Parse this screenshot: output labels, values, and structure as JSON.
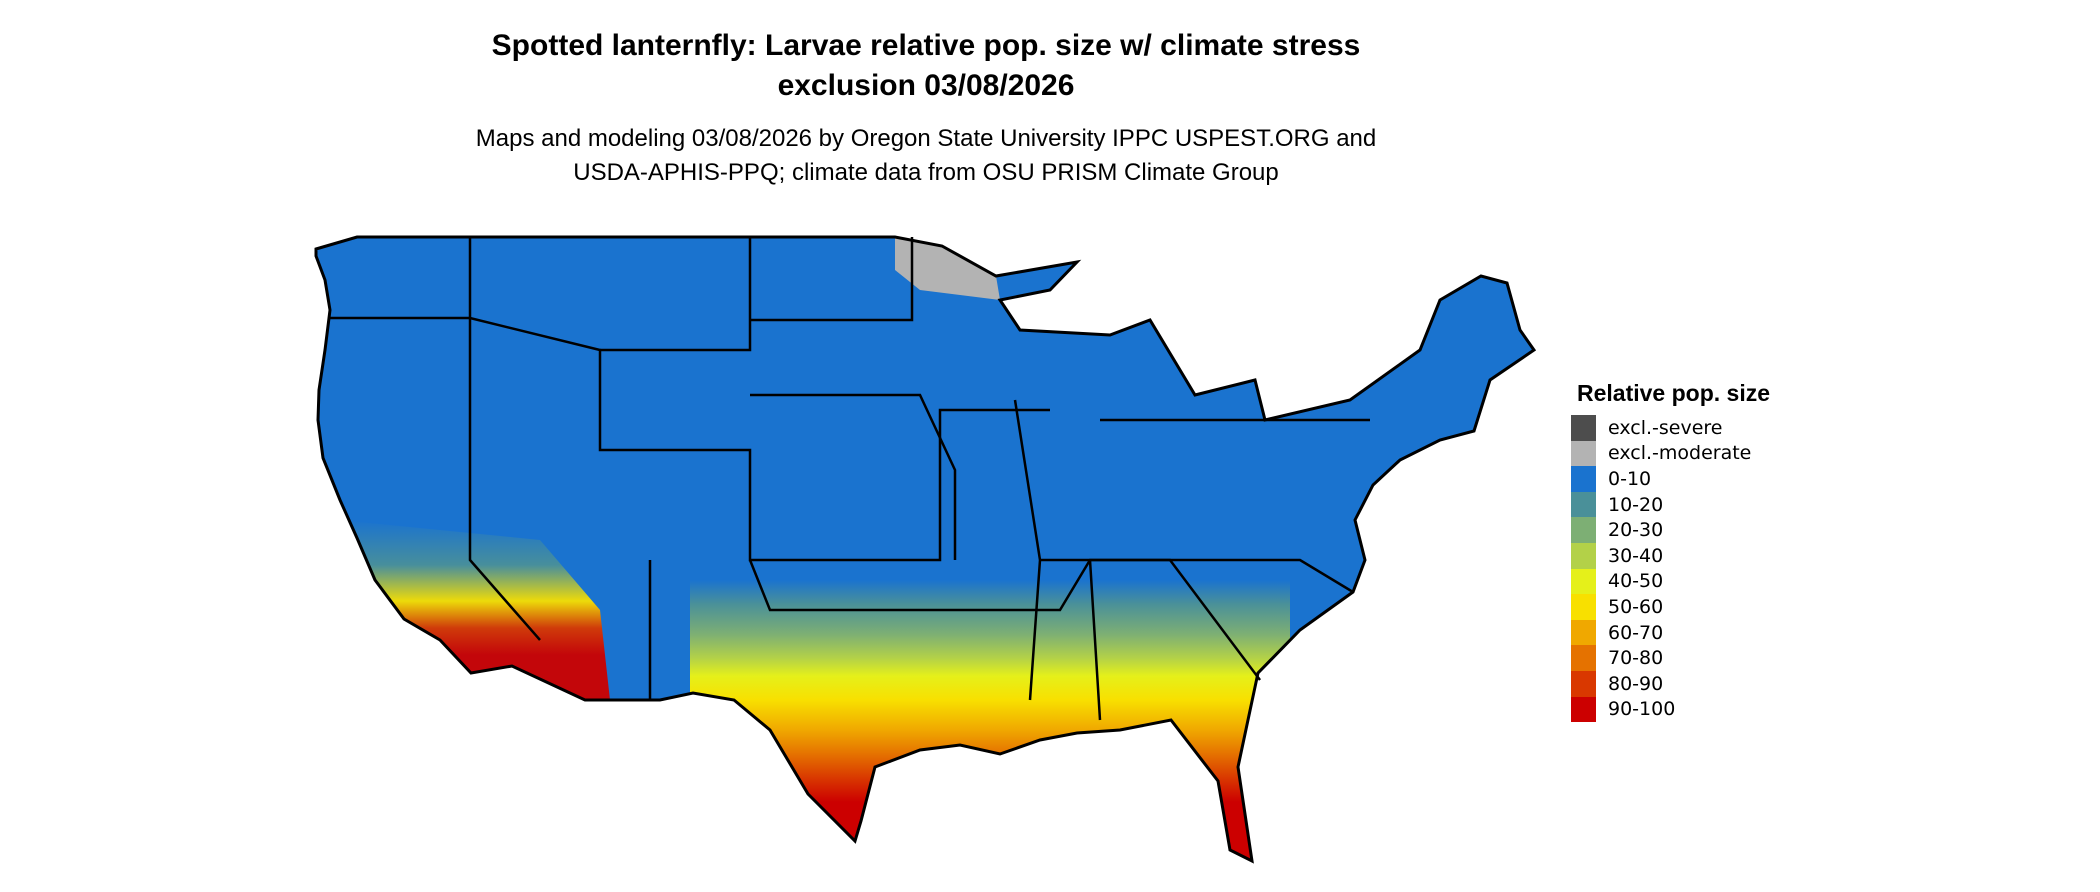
{
  "title": {
    "line1": "Spotted lanternfly: Larvae relative pop. size w/ climate stress",
    "line2": "exclusion 03/08/2026"
  },
  "subtitle": {
    "line1": "Maps and modeling 03/08/2026 by Oregon State University IPPC USPEST.ORG and",
    "line2": "USDA-APHIS-PPQ; climate data from OSU PRISM Climate Group"
  },
  "chart_data": {
    "type": "map",
    "region": "Contiguous United States",
    "legend": {
      "title": "Relative pop. size",
      "placement": "right",
      "items": [
        {
          "label": "excl.-severe",
          "color": "#4d4d4d"
        },
        {
          "label": "excl.-moderate",
          "color": "#b3b3b3"
        },
        {
          "label": "0-10",
          "color": "#1a73cf"
        },
        {
          "label": "10-20",
          "color": "#4a9099"
        },
        {
          "label": "20-30",
          "color": "#7daf74"
        },
        {
          "label": "30-40",
          "color": "#b3d148"
        },
        {
          "label": "40-50",
          "color": "#e5f01a"
        },
        {
          "label": "50-60",
          "color": "#f8e000"
        },
        {
          "label": "60-70",
          "color": "#f0a800"
        },
        {
          "label": "70-80",
          "color": "#e57200"
        },
        {
          "label": "80-90",
          "color": "#d93800"
        },
        {
          "label": "90-100",
          "color": "#cc0000"
        }
      ]
    }
  }
}
